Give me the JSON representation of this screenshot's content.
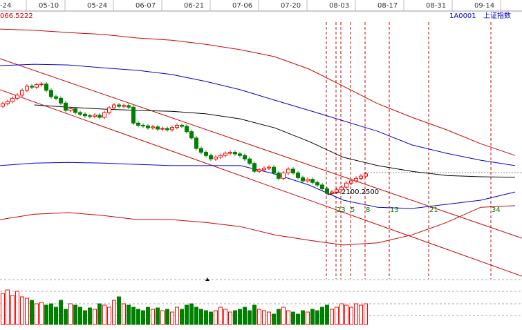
{
  "chart_data": {
    "type": "candlestick",
    "date_labels": [
      "-24",
      "05-10",
      "05-24",
      "06-07",
      "06-21",
      "07-06",
      "07-20",
      "08-03",
      "08-17",
      "08-31",
      "09-14"
    ],
    "corner_value": "066.5222",
    "code": "1A0001",
    "name": "上证指数",
    "annotation": "2100.2500",
    "fib_labels": [
      "23",
      "5",
      "8",
      "13",
      "21",
      "34"
    ],
    "ylim": [
      1835,
      2661
    ],
    "up_color": "#ff0000",
    "down_color": "#008000",
    "candles": [
      [
        2370,
        2384,
        2364,
        2378
      ],
      [
        2378,
        2391,
        2372,
        2385
      ],
      [
        2385,
        2401,
        2379,
        2395
      ],
      [
        2395,
        2411,
        2389,
        2405
      ],
      [
        2405,
        2426,
        2399,
        2420
      ],
      [
        2420,
        2439,
        2414,
        2433
      ],
      [
        2433,
        2439,
        2424,
        2430
      ],
      [
        2430,
        2444,
        2424,
        2438
      ],
      [
        2438,
        2446,
        2432,
        2440
      ],
      [
        2440,
        2446,
        2414,
        2420
      ],
      [
        2420,
        2426,
        2394,
        2400
      ],
      [
        2400,
        2406,
        2389,
        2395
      ],
      [
        2395,
        2401,
        2374,
        2380
      ],
      [
        2380,
        2386,
        2351,
        2357
      ],
      [
        2357,
        2368,
        2351,
        2362
      ],
      [
        2362,
        2368,
        2344,
        2350
      ],
      [
        2350,
        2356,
        2339,
        2345
      ],
      [
        2345,
        2351,
        2334,
        2340
      ],
      [
        2340,
        2346,
        2332,
        2338
      ],
      [
        2338,
        2348,
        2332,
        2342
      ],
      [
        2342,
        2348,
        2329,
        2335
      ],
      [
        2335,
        2356,
        2329,
        2350
      ],
      [
        2350,
        2371,
        2344,
        2365
      ],
      [
        2365,
        2380,
        2359,
        2374
      ],
      [
        2374,
        2380,
        2364,
        2370
      ],
      [
        2370,
        2378,
        2364,
        2372
      ],
      [
        2372,
        2378,
        2361,
        2367
      ],
      [
        2367,
        2373,
        2311,
        2317
      ],
      [
        2317,
        2323,
        2304,
        2310
      ],
      [
        2310,
        2316,
        2302,
        2308
      ],
      [
        2308,
        2314,
        2296,
        2302
      ],
      [
        2302,
        2311,
        2296,
        2305
      ],
      [
        2305,
        2311,
        2292,
        2298
      ],
      [
        2298,
        2306,
        2292,
        2300
      ],
      [
        2300,
        2306,
        2290,
        2296
      ],
      [
        2296,
        2309,
        2290,
        2303
      ],
      [
        2303,
        2316,
        2297,
        2310
      ],
      [
        2310,
        2316,
        2301,
        2307
      ],
      [
        2307,
        2313,
        2284,
        2290
      ],
      [
        2290,
        2296,
        2264,
        2270
      ],
      [
        2270,
        2276,
        2231,
        2237
      ],
      [
        2237,
        2243,
        2219,
        2225
      ],
      [
        2225,
        2231,
        2209,
        2215
      ],
      [
        2215,
        2221,
        2198,
        2204
      ],
      [
        2204,
        2216,
        2198,
        2210
      ],
      [
        2210,
        2221,
        2204,
        2215
      ],
      [
        2215,
        2228,
        2209,
        2222
      ],
      [
        2222,
        2231,
        2216,
        2225
      ],
      [
        2225,
        2231,
        2214,
        2220
      ],
      [
        2220,
        2226,
        2209,
        2215
      ],
      [
        2215,
        2221,
        2198,
        2204
      ],
      [
        2204,
        2210,
        2184,
        2190
      ],
      [
        2190,
        2196,
        2159,
        2165
      ],
      [
        2165,
        2176,
        2159,
        2170
      ],
      [
        2170,
        2181,
        2164,
        2175
      ],
      [
        2175,
        2184,
        2169,
        2178
      ],
      [
        2178,
        2184,
        2154,
        2160
      ],
      [
        2160,
        2166,
        2137,
        2143
      ],
      [
        2143,
        2166,
        2137,
        2160
      ],
      [
        2160,
        2178,
        2154,
        2172
      ],
      [
        2172,
        2178,
        2154,
        2160
      ],
      [
        2160,
        2166,
        2139,
        2145
      ],
      [
        2145,
        2151,
        2129,
        2135
      ],
      [
        2135,
        2146,
        2129,
        2140
      ],
      [
        2140,
        2146,
        2124,
        2130
      ],
      [
        2130,
        2136,
        2116,
        2122
      ],
      [
        2122,
        2128,
        2104,
        2110
      ],
      [
        2110,
        2116,
        2090,
        2096
      ],
      [
        2096,
        2106,
        2090,
        2100
      ],
      [
        2100,
        2113,
        2094,
        2107
      ],
      [
        2107,
        2121,
        2101,
        2115
      ],
      [
        2115,
        2134,
        2109,
        2128
      ],
      [
        2128,
        2141,
        2122,
        2135
      ],
      [
        2135,
        2149,
        2129,
        2143
      ],
      [
        2143,
        2156,
        2137,
        2150
      ],
      [
        2150,
        2163,
        2144,
        2157
      ]
    ],
    "volumes": [
      45,
      50,
      42,
      48,
      40,
      38,
      35,
      30,
      32,
      28,
      30,
      25,
      35,
      22,
      30,
      28,
      25,
      20,
      24,
      22,
      30,
      28,
      25,
      35,
      40,
      30,
      28,
      25,
      22,
      20,
      25,
      22,
      24,
      20,
      22,
      18,
      25,
      22,
      28,
      30,
      25,
      22,
      20,
      18,
      20,
      25,
      22,
      18,
      20,
      22,
      25,
      20,
      28,
      22,
      20,
      18,
      15,
      22,
      25,
      20,
      18,
      15,
      20,
      18,
      22,
      20,
      25,
      28,
      22,
      25,
      30,
      28,
      25,
      30,
      28,
      30
    ],
    "bands": [
      {
        "color": "#cc0000",
        "values": [
          2613,
          2609,
          2602,
          2596,
          2585,
          2578,
          2565,
          2548,
          2526,
          2487,
          2433,
          2378,
          2335,
          2296,
          2252,
          2215
        ]
      },
      {
        "color": "#0000cc",
        "values": [
          2498,
          2502,
          2500,
          2491,
          2483,
          2470,
          2448,
          2422,
          2389,
          2357,
          2324,
          2291,
          2248,
          2222,
          2200,
          2183
        ]
      },
      {
        "color": "#000000",
        "values": [
          null,
          2374,
          2367,
          2361,
          2357,
          2354,
          2346,
          2330,
          2302,
          2259,
          2209,
          2183,
          2165,
          2152,
          2148,
          2146
        ]
      },
      {
        "color": "#0000cc",
        "values": [
          2183,
          2191,
          2193,
          2191,
          2187,
          2183,
          2183,
          2183,
          2157,
          2122,
          2074,
          2052,
          2048,
          2061,
          2074,
          2100
        ]
      },
      {
        "color": "#cc0000",
        "values": [
          2013,
          2030,
          2035,
          2026,
          2013,
          2013,
          2004,
          1991,
          1965,
          1948,
          1933,
          1940,
          1965,
          2004,
          2052,
          2057
        ]
      }
    ]
  }
}
